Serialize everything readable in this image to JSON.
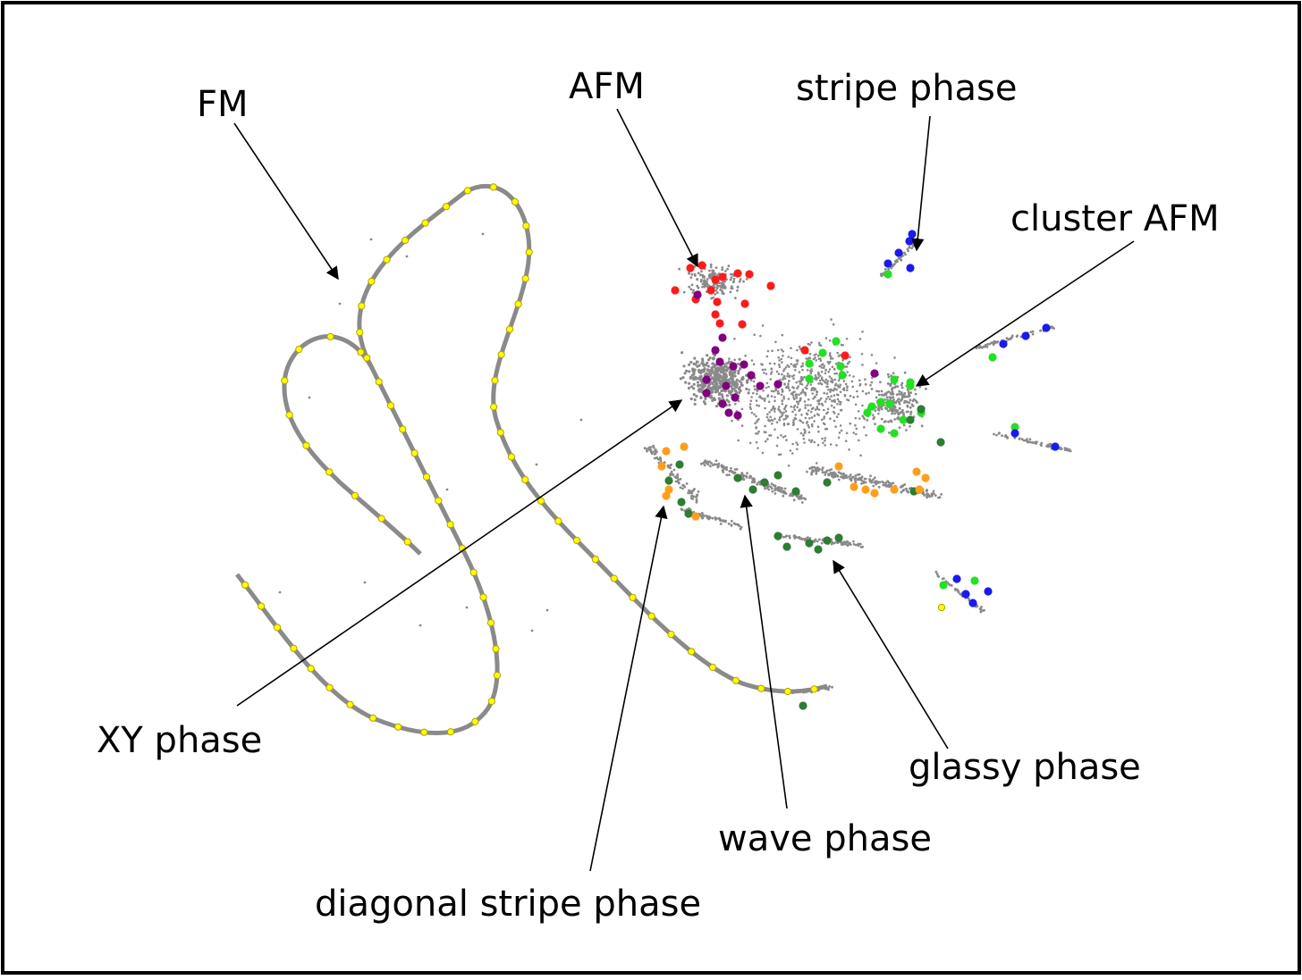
{
  "labels": {
    "fm": "FM",
    "afm": "AFM",
    "stripe": "stripe phase",
    "cluster_afm": "cluster AFM",
    "xy": "XY phase",
    "glassy": "glassy phase",
    "wave": "wave phase",
    "diagonal": "diagonal stripe phase"
  },
  "colors": {
    "background_points": "#8a8a8a",
    "fm": "#ffff00",
    "afm": "#ff1a1a",
    "xy": "#800080",
    "cluster_afm": "#22e022",
    "stripe": "#1a1aee",
    "glassy": "#2e7d32",
    "diagonal": "#ff9e1a",
    "arrows": "#000000",
    "frame": "#000000"
  }
}
